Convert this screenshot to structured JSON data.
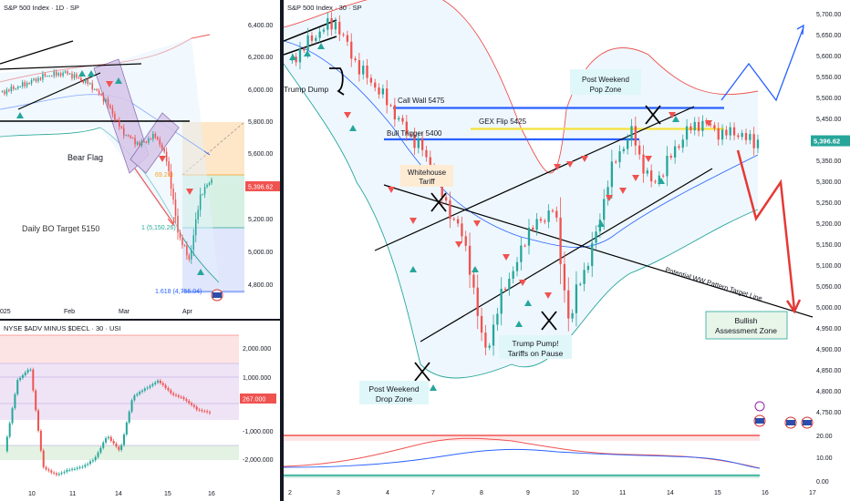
{
  "daily": {
    "title": "S&P 500 Index · 1D · SP",
    "price_labels": [
      "6,400.00",
      "6,200.00",
      "6,000.00",
      "5,800.00",
      "5,600.00",
      "5,200.00",
      "5,000.00",
      "4,800.00"
    ],
    "last_price": "5,396.62",
    "x_labels": [
      "025",
      "Feb",
      "Mar",
      "Apr"
    ],
    "annotations": {
      "bear_flag": "Bear Flag",
      "daily_bo": "Daily BO Target 5150",
      "fib_0_level": "69.21)",
      "fib_1": "1 (5,150.26)",
      "fib_1618": "1.618 (4,756.04)"
    }
  },
  "breadth": {
    "title": "NYSE $ADV MINUS $DECL · 30 · USI",
    "y_labels": [
      "2,000.000",
      "1,000.000",
      "-1,000.000",
      "-2,000.000"
    ],
    "last_value": "267.000",
    "x_labels": [
      "10",
      "11",
      "14",
      "15",
      "16"
    ]
  },
  "intraday": {
    "title": "S&P 500 Index · 30 · SP",
    "price_labels": [
      "5,700.00",
      "5,650.00",
      "5,600.00",
      "5,550.00",
      "5,500.00",
      "5,450.00",
      "5,350.00",
      "5,300.00",
      "5,250.00",
      "5,200.00",
      "5,150.00",
      "5,100.00",
      "5,050.00",
      "5,000.00",
      "4,950.00",
      "4,900.00",
      "4,850.00",
      "4,800.00",
      "4,750.00"
    ],
    "last_price": "5,396.62",
    "osc_labels": [
      "20.00",
      "10.00",
      "0.00"
    ],
    "x_labels": [
      "2",
      "3",
      "4",
      "7",
      "8",
      "9",
      "10",
      "11",
      "14",
      "15",
      "16",
      "17"
    ],
    "annotations": {
      "trump_dump": "Trump Dump",
      "call_wall": "Call Wall 5475",
      "post_weekend_pop": [
        "Post Weekend",
        "Pop Zone"
      ],
      "gex_flip": "GEX Flip 5425",
      "bull_trigger": "Bull Trigger 5400",
      "whitehouse": [
        "Whitehouse",
        "Tariff"
      ],
      "potential_ww": "Potential WW Pattern Target Line",
      "bullish_zone": [
        "Bullish",
        "Assessment Zone"
      ],
      "trump_pump": [
        "Trump Pump!",
        "Tariffs on Pause"
      ],
      "post_weekend_drop": [
        "Post Weekend",
        "Drop Zone"
      ]
    }
  },
  "colors": {
    "up": "#26a69a",
    "down": "#ef5350",
    "call_wall": "#2962ff",
    "gex": "#f5e13a",
    "bull_trigger": "#2962ff",
    "band_upper": "#ef5350",
    "band_lower": "#26a69a",
    "band_fill": "#e3f2fd",
    "label_bg": "#e0f7fa",
    "whitehouse_bg": "#fdebd3",
    "bullish_bg": "#e8f5e9",
    "price_tag": "#ef5350",
    "price_tag_green": "#26a69a"
  },
  "chart_data": [
    {
      "type": "candlestick",
      "title": "S&P 500 Index · 1D · SP",
      "x_ticks": [
        "Feb",
        "Mar",
        "Apr"
      ],
      "ylim": [
        4700,
        6450
      ],
      "last": 5396.62,
      "levels": {
        "fib_1": 5150.26,
        "fib_1618": 4756.04
      }
    },
    {
      "type": "bar",
      "title": "NYSE $ADV MINUS $DECL · 30 · USI",
      "x_ticks": [
        "10",
        "11",
        "14",
        "15",
        "16"
      ],
      "ylim": [
        -2500,
        2300
      ],
      "last": 267
    },
    {
      "type": "candlestick",
      "title": "S&P 500 Index · 30 · SP",
      "x_ticks": [
        "2",
        "3",
        "4",
        "7",
        "8",
        "9",
        "10",
        "11",
        "14",
        "15",
        "16",
        "17"
      ],
      "ylim": [
        4720,
        5720
      ],
      "last": 5396.62,
      "levels": {
        "Call Wall": 5475,
        "GEX Flip": 5425,
        "Bull Trigger": 5400
      },
      "close_path": [
        [
          0,
          5580
        ],
        [
          3,
          5610
        ],
        [
          6,
          5640
        ],
        [
          9,
          5665
        ],
        [
          12,
          5680
        ],
        [
          18,
          5570
        ],
        [
          22,
          5530
        ],
        [
          26,
          5480
        ],
        [
          30,
          5420
        ],
        [
          34,
          5380
        ],
        [
          38,
          5300
        ],
        [
          40,
          5250
        ],
        [
          44,
          5180
        ],
        [
          46,
          5120
        ],
        [
          48,
          5000
        ],
        [
          50,
          4900
        ],
        [
          52,
          4930
        ],
        [
          55,
          5050
        ],
        [
          58,
          5090
        ],
        [
          61,
          5180
        ],
        [
          64,
          5200
        ],
        [
          68,
          5240
        ],
        [
          70,
          5080
        ],
        [
          72,
          4950
        ],
        [
          74,
          5060
        ],
        [
          76,
          5090
        ],
        [
          78,
          5150
        ],
        [
          80,
          5230
        ],
        [
          82,
          5310
        ],
        [
          84,
          5360
        ],
        [
          86,
          5390
        ],
        [
          88,
          5420
        ],
        [
          90,
          5350
        ],
        [
          93,
          5290
        ],
        [
          96,
          5330
        ],
        [
          99,
          5380
        ],
        [
          102,
          5420
        ],
        [
          105,
          5440
        ],
        [
          108,
          5430
        ],
        [
          111,
          5410
        ],
        [
          114,
          5420
        ],
        [
          117,
          5400
        ],
        [
          120,
          5396
        ]
      ]
    }
  ]
}
